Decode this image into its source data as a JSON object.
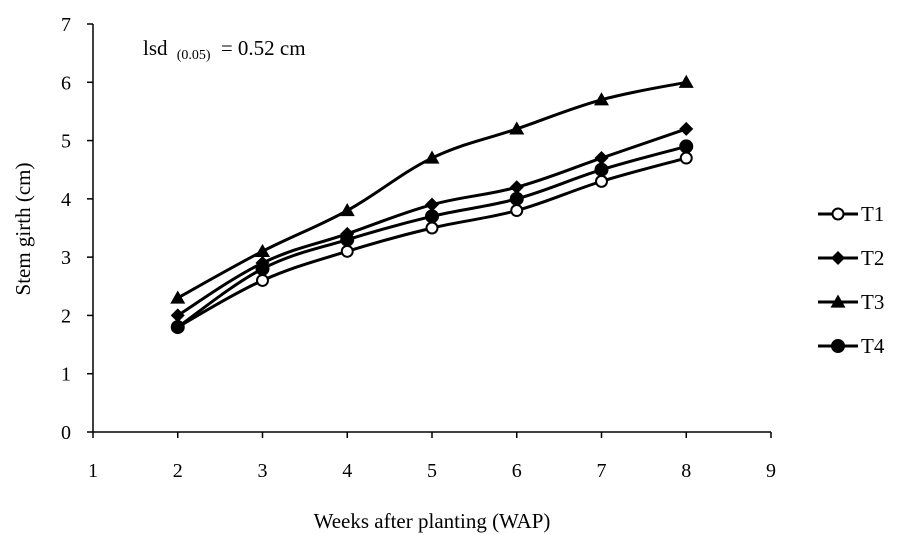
{
  "chart_data": {
    "type": "line",
    "title": "",
    "xlabel": "Weeks after planting (WAP)",
    "ylabel": "Stem girth (cm)",
    "xlim": [
      1,
      9
    ],
    "ylim": [
      0,
      7
    ],
    "x_ticks": [
      "1",
      "2",
      "3",
      "4",
      "5",
      "6",
      "7",
      "8",
      "9"
    ],
    "y_ticks": [
      "0",
      "1",
      "2",
      "3",
      "4",
      "5",
      "6",
      "7"
    ],
    "x": [
      2,
      3,
      4,
      5,
      6,
      7,
      8
    ],
    "series": [
      {
        "name": "T1",
        "marker": "open-circle",
        "values": [
          1.8,
          2.6,
          3.1,
          3.5,
          3.8,
          4.3,
          4.7
        ]
      },
      {
        "name": "T2",
        "marker": "diamond",
        "values": [
          2.0,
          2.9,
          3.4,
          3.9,
          4.2,
          4.7,
          5.2
        ]
      },
      {
        "name": "T3",
        "marker": "triangle",
        "values": [
          2.3,
          3.1,
          3.8,
          4.7,
          5.2,
          5.7,
          6.0
        ]
      },
      {
        "name": "T4",
        "marker": "filled-circle",
        "values": [
          1.8,
          2.8,
          3.3,
          3.7,
          4.0,
          4.5,
          4.9
        ]
      }
    ],
    "annotation": {
      "text_main": "lsd",
      "text_sub": "(0.05)",
      "text_rest": "= 0.52 cm"
    },
    "grid": false,
    "legend_position": "right",
    "colors": {
      "line": "#000000",
      "background": "#ffffff"
    }
  }
}
